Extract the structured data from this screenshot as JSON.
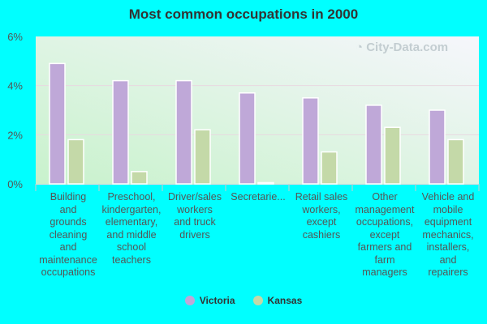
{
  "chart_data": {
    "type": "bar",
    "title": "Most common occupations in 2000",
    "categories": [
      "Building and grounds cleaning and maintenance occupations",
      "Preschool, kindergarten, elementary, and middle school teachers",
      "Driver/sales workers and truck drivers",
      "Secretarie...",
      "Retail sales workers, except cashiers",
      "Other management occupations, except farmers and farm managers",
      "Vehicle and mobile equipment mechanics, installers, and repairers"
    ],
    "series": [
      {
        "name": "Victoria",
        "color": "#bfa8d8",
        "values": [
          4.9,
          4.2,
          4.2,
          3.7,
          3.5,
          3.2,
          3.0
        ]
      },
      {
        "name": "Kansas",
        "color": "#c4d9a8",
        "values": [
          1.8,
          0.5,
          2.2,
          0.05,
          1.3,
          2.3,
          1.8
        ]
      }
    ],
    "ylim": [
      0,
      6
    ],
    "yticks": [
      "0%",
      "2%",
      "4%",
      "6%"
    ],
    "grid": true,
    "legend": "bottom"
  },
  "watermark": "City-Data.com",
  "xlabels_wrapped": [
    [
      "Building",
      "and",
      "grounds",
      "cleaning",
      "and",
      "maintenance",
      "occupations"
    ],
    [
      "Preschool,",
      "kindergarten,",
      "elementary,",
      "and middle",
      "school",
      "teachers"
    ],
    [
      "Driver/sales",
      "workers",
      "and truck",
      "drivers"
    ],
    [
      "Secretarie..."
    ],
    [
      "Retail sales",
      "workers,",
      "except",
      "cashiers"
    ],
    [
      "Other",
      "management",
      "occupations,",
      "except",
      "farmers and",
      "farm",
      "managers"
    ],
    [
      "Vehicle and",
      "mobile",
      "equipment",
      "mechanics,",
      "installers,",
      "and",
      "repairers"
    ]
  ]
}
